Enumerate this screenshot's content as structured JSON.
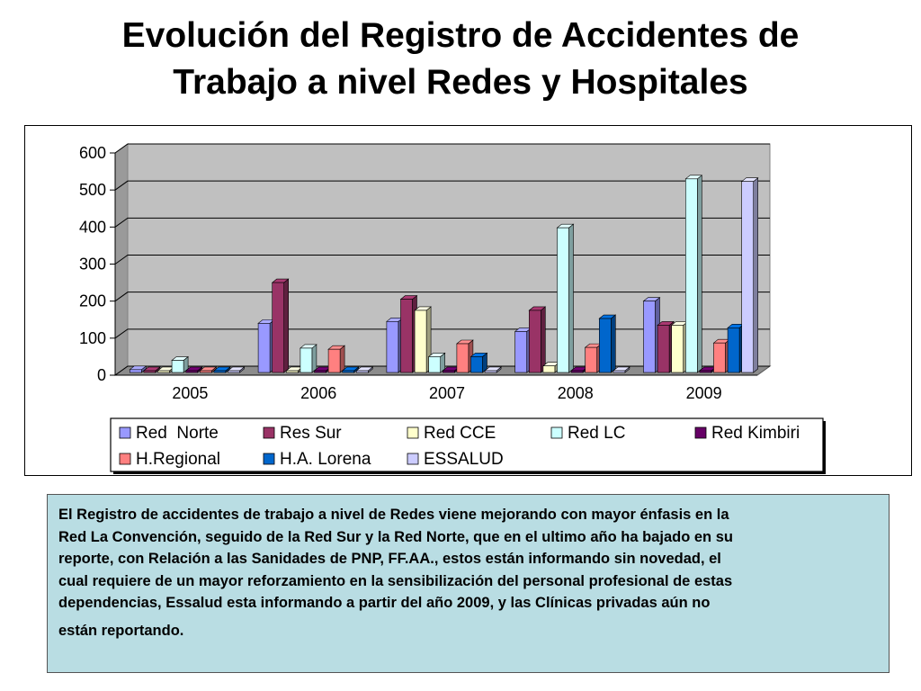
{
  "title": {
    "line1": "Evolución del Registro de Accidentes de",
    "line2": "Trabajo a nivel  Redes y Hospitales"
  },
  "chart_data": {
    "type": "bar",
    "categories": [
      "2005",
      "2006",
      "2007",
      "2008",
      "2009"
    ],
    "ylim": [
      0,
      600
    ],
    "yticks": [
      "0",
      "100",
      "200",
      "300",
      "400",
      "500",
      "600"
    ],
    "grid": true,
    "legend_position": "bottom",
    "series": [
      {
        "name": "Red  Norte",
        "color": "#9999ff",
        "values": [
          15,
          140,
          145,
          118,
          200
        ]
      },
      {
        "name": "Res Sur",
        "color": "#993366",
        "values": [
          5,
          250,
          205,
          175,
          135
        ]
      },
      {
        "name": "Red CCE",
        "color": "#ffffcc",
        "values": [
          2,
          5,
          175,
          25,
          135
        ]
      },
      {
        "name": "Red LC",
        "color": "#ccffff",
        "values": [
          40,
          73,
          50,
          398,
          530
        ]
      },
      {
        "name": "Red Kimbiri",
        "color": "#660066",
        "values": [
          2,
          2,
          2,
          2,
          10
        ]
      },
      {
        "name": "H.Regional",
        "color": "#ff8080",
        "values": [
          2,
          70,
          85,
          75,
          87
        ]
      },
      {
        "name": "H.A. Lorena",
        "color": "#0066cc",
        "values": [
          2,
          2,
          50,
          153,
          128
        ]
      },
      {
        "name": "ESSALUD",
        "color": "#ccccff",
        "values": [
          2,
          2,
          2,
          2,
          523
        ]
      }
    ]
  },
  "note": {
    "line1": "El Registro de accidentes de trabajo a nivel de Redes viene mejorando con mayor énfasis  en la",
    "line2": "Red La Convención, seguido de la Red Sur y la Red Norte, que en el ultimo año ha bajado en su",
    "line3": "reporte, con Relación  a las Sanidades de PNP, FF.AA., estos están informando sin novedad, el",
    "line4": "cual requiere de un mayor reforzamiento  en  la sensibilización del personal profesional de estas",
    "line5": "dependencias, Essalud esta  informando a partir del año 2009, y las Clínicas privadas aún no",
    "line6": "están reportando."
  }
}
